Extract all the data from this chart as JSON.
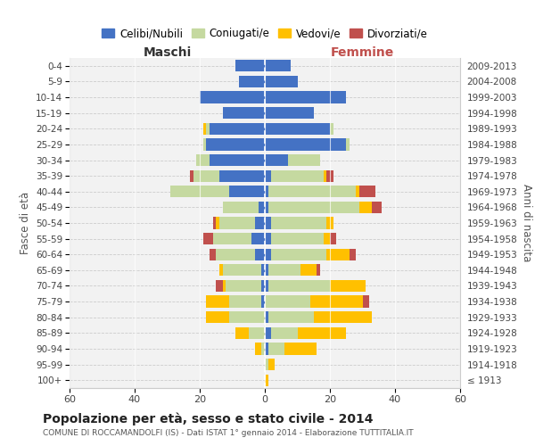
{
  "age_groups": [
    "100+",
    "95-99",
    "90-94",
    "85-89",
    "80-84",
    "75-79",
    "70-74",
    "65-69",
    "60-64",
    "55-59",
    "50-54",
    "45-49",
    "40-44",
    "35-39",
    "30-34",
    "25-29",
    "20-24",
    "15-19",
    "10-14",
    "5-9",
    "0-4"
  ],
  "birth_years": [
    "≤ 1913",
    "1914-1918",
    "1919-1923",
    "1924-1928",
    "1929-1933",
    "1934-1938",
    "1939-1943",
    "1944-1948",
    "1949-1953",
    "1954-1958",
    "1959-1963",
    "1964-1968",
    "1969-1973",
    "1974-1978",
    "1979-1983",
    "1984-1988",
    "1989-1993",
    "1994-1998",
    "1999-2003",
    "2004-2008",
    "2009-2013"
  ],
  "maschi": {
    "celibi": [
      0,
      0,
      0,
      0,
      0,
      1,
      1,
      1,
      3,
      4,
      3,
      2,
      11,
      14,
      17,
      18,
      17,
      13,
      20,
      8,
      9
    ],
    "coniugati": [
      0,
      0,
      1,
      5,
      11,
      10,
      11,
      12,
      12,
      12,
      11,
      11,
      18,
      8,
      4,
      1,
      1,
      0,
      0,
      0,
      0
    ],
    "vedovi": [
      0,
      0,
      2,
      4,
      7,
      7,
      1,
      1,
      0,
      0,
      1,
      0,
      0,
      0,
      0,
      0,
      1,
      0,
      0,
      0,
      0
    ],
    "divorziati": [
      0,
      0,
      0,
      0,
      0,
      0,
      2,
      0,
      2,
      3,
      1,
      0,
      0,
      1,
      0,
      0,
      0,
      0,
      0,
      0,
      0
    ]
  },
  "femmine": {
    "celibi": [
      0,
      0,
      1,
      2,
      1,
      0,
      1,
      1,
      2,
      2,
      2,
      1,
      1,
      2,
      7,
      25,
      20,
      15,
      25,
      10,
      8
    ],
    "coniugati": [
      0,
      1,
      5,
      8,
      14,
      14,
      19,
      10,
      17,
      16,
      17,
      28,
      27,
      16,
      10,
      1,
      1,
      0,
      0,
      0,
      0
    ],
    "vedovi": [
      1,
      2,
      10,
      15,
      18,
      16,
      11,
      5,
      7,
      2,
      2,
      4,
      1,
      1,
      0,
      0,
      0,
      0,
      0,
      0,
      0
    ],
    "divorziati": [
      0,
      0,
      0,
      0,
      0,
      2,
      0,
      1,
      2,
      2,
      0,
      3,
      5,
      2,
      0,
      0,
      0,
      0,
      0,
      0,
      0
    ]
  },
  "colors": {
    "celibi": "#4472c4",
    "coniugati": "#c5d9a0",
    "vedovi": "#ffc000",
    "divorziati": "#c0504d"
  },
  "xlim": 60,
  "title": "Popolazione per età, sesso e stato civile - 2014",
  "subtitle": "COMUNE DI ROCCAMANDOLFI (IS) - Dati ISTAT 1° gennaio 2014 - Elaborazione TUTTITALIA.IT",
  "xlabel_left": "Maschi",
  "xlabel_right": "Femmine",
  "ylabel_left": "Fasce di età",
  "ylabel_right": "Anni di nascita",
  "legend_labels": [
    "Celibi/Nubili",
    "Coniugati/e",
    "Vedovi/e",
    "Divorziati/e"
  ],
  "bg_color": "#f2f2f2"
}
